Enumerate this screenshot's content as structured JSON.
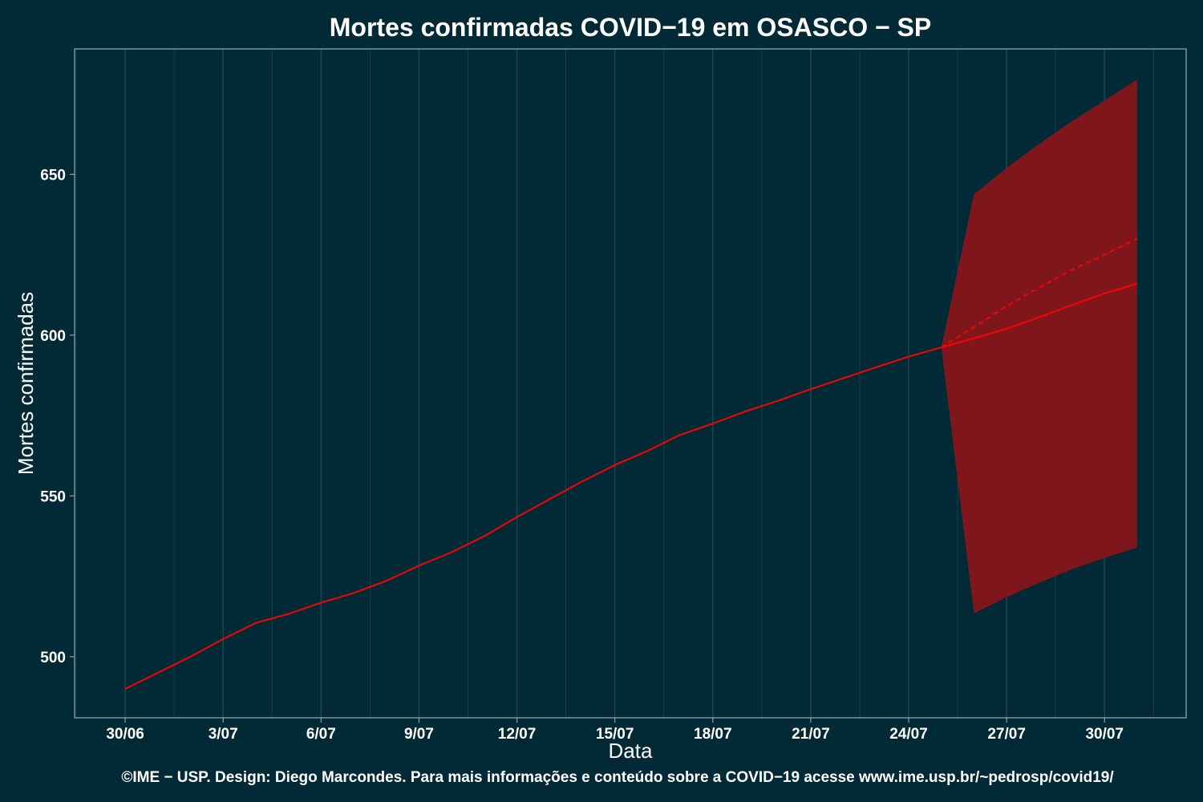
{
  "chart_data": {
    "type": "line",
    "title": "Mortes confirmadas COVID−19 em OSASCO − SP",
    "xlabel": "Data",
    "ylabel": "Mortes confirmadas",
    "caption": "©IME − USP. Design: Diego Marcondes. Para mais informações e conteúdo sobre a COVID−19 acesse www.ime.usp.br/~pedrosp/covid19/",
    "x_tick_labels": [
      "30/06",
      "3/07",
      "6/07",
      "9/07",
      "12/07",
      "15/07",
      "18/07",
      "21/07",
      "24/07",
      "27/07",
      "30/07"
    ],
    "y_ticks": [
      500,
      550,
      600,
      650
    ],
    "ylim": [
      481,
      689
    ],
    "x_day_range": [
      -1.55,
      32.5
    ],
    "grid": true,
    "colors": {
      "background": "#022a36",
      "panel_border": "#8fa3a8",
      "grid": "#1c4450",
      "line": "#ff0000",
      "band": "#7f161c"
    },
    "series": [
      {
        "style": "solid",
        "x_dates": [
          "30/06",
          "1/07",
          "2/07",
          "3/07",
          "4/07",
          "5/07",
          "6/07",
          "7/07",
          "8/07",
          "9/07",
          "10/07",
          "11/07",
          "12/07",
          "13/07",
          "14/07",
          "15/07",
          "16/07",
          "17/07",
          "18/07",
          "19/07",
          "20/07",
          "21/07",
          "22/07",
          "23/07",
          "24/07",
          "25/07",
          "26/07",
          "27/07",
          "28/07",
          "29/07",
          "30/07",
          "31/07"
        ],
        "x": [
          0,
          1,
          2,
          3,
          4,
          5,
          6,
          7,
          8,
          9,
          10,
          11,
          12,
          13,
          14,
          15,
          16,
          17,
          18,
          19,
          20,
          21,
          22,
          23,
          24,
          25,
          26,
          27,
          28,
          29,
          30,
          31
        ],
        "values": [
          490,
          495,
          500,
          505.5,
          510.5,
          513.3,
          516.8,
          519.8,
          523.6,
          528.3,
          532.5,
          537.5,
          543.4,
          549.0,
          554.5,
          559.6,
          564.0,
          569.0,
          572.5,
          576.3,
          579.6,
          583.2,
          586.6,
          590.0,
          593.3,
          596.2,
          599.0,
          602.0,
          605.6,
          609.3,
          613.0,
          616.0
        ]
      },
      {
        "style": "dashed",
        "x_dates": [
          "25/07",
          "26/07",
          "27/07",
          "28/07",
          "29/07",
          "30/07",
          "31/07"
        ],
        "x": [
          25,
          26,
          27,
          28,
          29,
          30,
          31
        ],
        "values": [
          596.2,
          602.5,
          609.0,
          614.8,
          620.3,
          625.0,
          630.0
        ]
      }
    ],
    "band": {
      "x_dates": [
        "25/07",
        "26/07",
        "27/07",
        "28/07",
        "29/07",
        "30/07",
        "31/07"
      ],
      "x": [
        25,
        26,
        27,
        28,
        29,
        30,
        31
      ],
      "lower": [
        596.2,
        513.5,
        518.5,
        523.0,
        527.2,
        530.7,
        534.0
      ],
      "upper": [
        596.2,
        643.8,
        652.0,
        659.5,
        666.5,
        673.0,
        679.5
      ]
    }
  }
}
